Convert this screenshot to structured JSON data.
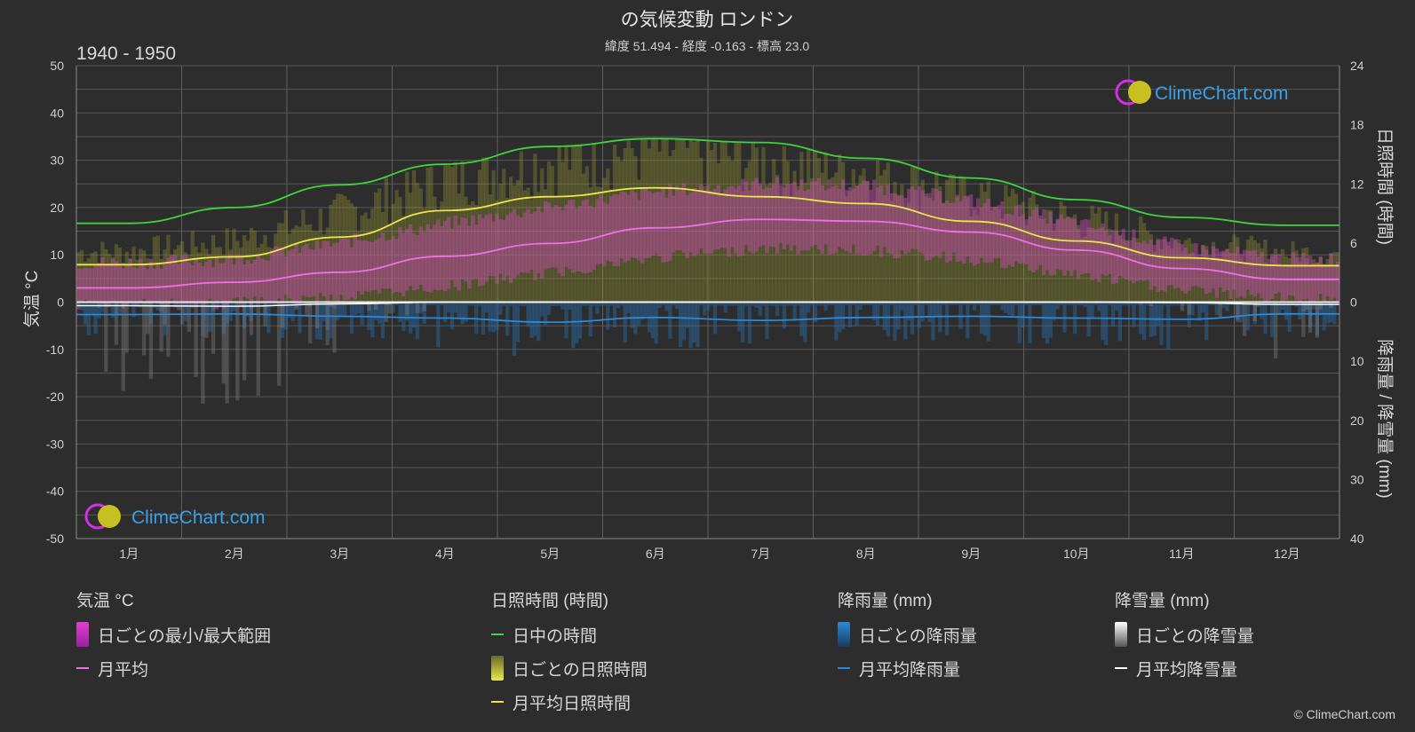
{
  "title": "の気候変動 ロンドン",
  "subtitle": "緯度 51.494 - 経度 -0.163 - 標高 23.0",
  "period": "1940 - 1950",
  "logo_text": "ClimeChart.com",
  "copyright": "© ClimeChart.com",
  "chart_data": {
    "type": "area",
    "categories": [
      "1月",
      "2月",
      "3月",
      "4月",
      "5月",
      "6月",
      "7月",
      "8月",
      "9月",
      "10月",
      "11月",
      "12月"
    ],
    "temperature_axis": {
      "label": "気温 °C",
      "range": [
        -50,
        50
      ],
      "ticks": [
        50,
        40,
        30,
        20,
        10,
        0,
        -10,
        -20,
        -30,
        -40,
        -50
      ]
    },
    "sunshine_axis": {
      "label": "日照時間 (時間)",
      "range": [
        0,
        24
      ],
      "ticks": [
        24,
        18,
        12,
        6,
        0
      ]
    },
    "precip_axis": {
      "label": "降雨量 / 降雪量 (mm)",
      "range": [
        0,
        40
      ],
      "ticks": [
        0,
        10,
        20,
        30,
        40
      ]
    },
    "series": [
      {
        "name": "日中の時間",
        "axis": "sunshine",
        "color": "#3dd43d",
        "values": [
          8.0,
          9.6,
          11.9,
          14.0,
          15.8,
          16.6,
          16.2,
          14.6,
          12.6,
          10.4,
          8.6,
          7.8
        ]
      },
      {
        "name": "月平均日照時間",
        "axis": "sunshine",
        "color": "#e8e84a",
        "values": [
          3.8,
          4.6,
          6.6,
          9.3,
          10.7,
          11.6,
          10.7,
          10.0,
          8.2,
          6.2,
          4.5,
          3.7
        ]
      },
      {
        "name": "月平均",
        "axis": "temperature",
        "color": "#ee6ee8",
        "values": [
          3.0,
          4.2,
          6.3,
          9.7,
          12.4,
          15.7,
          17.5,
          17.1,
          14.8,
          11.0,
          7.1,
          4.8
        ]
      },
      {
        "name": "月平均降雨量",
        "axis": "precip",
        "color": "#2b8ad8",
        "values": [
          2.1,
          2.0,
          2.4,
          2.7,
          3.4,
          2.6,
          3.1,
          2.6,
          2.4,
          2.7,
          2.9,
          2.0
        ]
      },
      {
        "name": "月平均降雪量",
        "axis": "precip",
        "color": "#ffffff",
        "values": [
          0.6,
          0.7,
          0.3,
          0.0,
          0.0,
          0.0,
          0.0,
          0.0,
          0.0,
          0.0,
          0.1,
          0.4
        ]
      }
    ],
    "daily_temperature_range": {
      "min": [
        0.8,
        1.0,
        2.2,
        4.5,
        7.4,
        10.6,
        12.6,
        12.2,
        10.2,
        7.0,
        3.8,
        2.0
      ],
      "max": [
        6.8,
        7.6,
        11.0,
        15.0,
        18.6,
        21.8,
        23.6,
        23.2,
        20.0,
        15.2,
        10.2,
        7.6
      ]
    },
    "grid": true
  },
  "legend": {
    "temp": {
      "title": "気温 °C",
      "items": [
        "日ごとの最小/最大範囲",
        "月平均"
      ]
    },
    "sun": {
      "title": "日照時間 (時間)",
      "items": [
        "日中の時間",
        "日ごとの日照時間",
        "月平均日照時間"
      ]
    },
    "rain": {
      "title": "降雨量 (mm)",
      "items": [
        "日ごとの降雨量",
        "月平均降雨量"
      ]
    },
    "snow": {
      "title": "降雪量 (mm)",
      "items": [
        "日ごとの降雪量",
        "月平均降雪量"
      ]
    }
  },
  "colors": {
    "background": "#2d2d2d",
    "grid": "#5a5a5a",
    "daylight": "#3dd43d",
    "sunshine": "#e8e84a",
    "temp_range": "#e040d0",
    "temp_mean": "#ee6ee8",
    "rain": "#2b8ad8",
    "snow": "#ffffff",
    "logo": "#3aa0e8"
  }
}
